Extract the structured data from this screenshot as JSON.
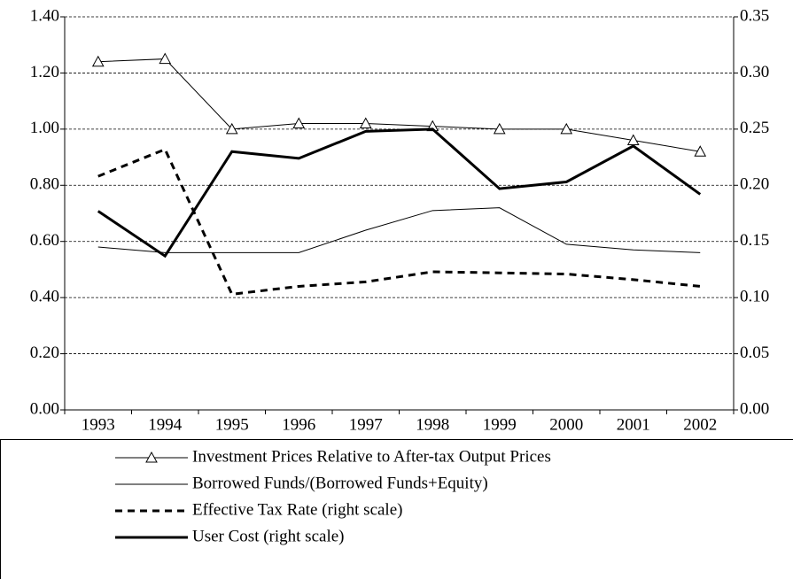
{
  "chart_data": {
    "type": "line",
    "categories": [
      "1993",
      "1994",
      "1995",
      "1996",
      "1997",
      "1998",
      "1999",
      "2000",
      "2001",
      "2002"
    ],
    "series": [
      {
        "name": "Investment Prices Relative to After-tax Output Prices",
        "color": "#000000",
        "width": 1,
        "marker": "triangle",
        "dashed": false,
        "values": [
          1.24,
          1.25,
          1.0,
          1.02,
          1.02,
          1.01,
          1.0,
          1.0,
          0.96,
          0.92
        ]
      },
      {
        "name": "Borrowed Funds/(Borrowed Funds+Equity)",
        "color": "#000000",
        "width": 1,
        "dashed": false,
        "values": [
          0.58,
          0.56,
          0.56,
          0.56,
          0.64,
          0.71,
          0.72,
          0.59,
          0.57,
          0.56
        ]
      },
      {
        "name": "Effective Tax Rate (right scale)",
        "color": "#000000",
        "width": 3,
        "dashed": true,
        "axis": "y2",
        "values": [
          0.208,
          0.232,
          0.103,
          0.11,
          0.114,
          0.123,
          0.122,
          0.121,
          0.116,
          0.11
        ]
      },
      {
        "name": "User Cost (right scale)",
        "color": "#000000",
        "width": 3,
        "dashed": false,
        "axis": "y2",
        "values": [
          0.177,
          0.137,
          0.23,
          0.224,
          0.248,
          0.25,
          0.197,
          0.203,
          0.235,
          0.192
        ]
      }
    ],
    "ylim": [
      0,
      1.4
    ],
    "yticks": [
      {
        "value": 0,
        "label": "0.00"
      },
      {
        "value": 0.2,
        "label": "0.20"
      },
      {
        "value": 0.4,
        "label": "0.40"
      },
      {
        "value": 0.6,
        "label": "0.60"
      },
      {
        "value": 0.8,
        "label": "0.80"
      },
      {
        "value": 1.0,
        "label": "1.00"
      },
      {
        "value": 1.2,
        "label": "1.20"
      },
      {
        "value": 1.4,
        "label": "1.40"
      }
    ],
    "y2lim": [
      0,
      0.35
    ],
    "y2ticks": [
      {
        "value": 0,
        "label": "0.00"
      },
      {
        "value": 0.05,
        "label": "0.05"
      },
      {
        "value": 0.1,
        "label": "0.10"
      },
      {
        "value": 0.15,
        "label": "0.15"
      },
      {
        "value": 0.2,
        "label": "0.20"
      },
      {
        "value": 0.25,
        "label": "0.25"
      },
      {
        "value": 0.3,
        "label": "0.30"
      },
      {
        "value": 0.35,
        "label": "0.35"
      }
    ],
    "grid": true
  }
}
